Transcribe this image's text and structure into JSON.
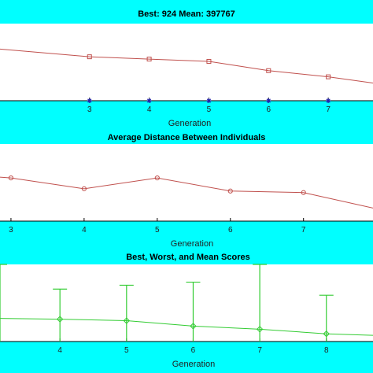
{
  "chart_data": [
    {
      "type": "line",
      "title": "Best: 924 Mean: 397767",
      "xlabel": "Generation",
      "ylabel": "",
      "xlim": [
        1.5,
        7.75
      ],
      "ylim": [
        0,
        1
      ],
      "xticks": [
        3,
        4,
        5,
        6,
        7
      ],
      "grid": false,
      "colors": {
        "mean": "#c0504d",
        "best": "#2222aa"
      },
      "series": [
        {
          "marker": "square",
          "x": [
            1.5,
            3,
            4,
            5,
            6,
            7,
            7.75
          ],
          "y": [
            0.67,
            0.57,
            0.54,
            0.51,
            0.39,
            0.31,
            0.23
          ]
        },
        {
          "marker": "star",
          "x": [
            3,
            4,
            5,
            6,
            7
          ],
          "y": [
            0,
            0,
            0,
            0,
            0
          ]
        }
      ]
    },
    {
      "type": "line",
      "title": "Average Distance Between Individuals",
      "xlabel": "Generation",
      "ylabel": "",
      "xlim": [
        2.85,
        7.95
      ],
      "ylim": [
        0,
        1
      ],
      "xticks": [
        3,
        4,
        5,
        6,
        7
      ],
      "grid": false,
      "colors": {
        "line": "#c0504d"
      },
      "series": [
        {
          "marker": "circle",
          "x": [
            2.85,
            3,
            4,
            5,
            6,
            7,
            7.95
          ],
          "y": [
            0.57,
            0.56,
            0.42,
            0.56,
            0.39,
            0.37,
            0.17
          ]
        }
      ]
    },
    {
      "type": "line",
      "title": "Best, Worst, and Mean Scores",
      "xlabel": "Generation",
      "ylabel": "",
      "xlim": [
        3.1,
        8.7
      ],
      "ylim": [
        0,
        1
      ],
      "xticks": [
        4,
        5,
        6,
        7,
        8
      ],
      "grid": false,
      "colors": {
        "line": "#33cc33"
      },
      "series": [
        {
          "marker": "diamond",
          "x": [
            3.1,
            4,
            5,
            6,
            7,
            8,
            8.7
          ],
          "y": [
            0.3,
            0.29,
            0.27,
            0.2,
            0.16,
            0.1,
            0.08
          ]
        }
      ],
      "errorbars": [
        {
          "x": 3.1,
          "low": 0,
          "high": 1.0
        },
        {
          "x": 4,
          "low": 0,
          "high": 0.68
        },
        {
          "x": 5,
          "low": 0,
          "high": 0.73
        },
        {
          "x": 6,
          "low": 0,
          "high": 0.77
        },
        {
          "x": 7,
          "low": 0,
          "high": 1.0
        },
        {
          "x": 8,
          "low": 0,
          "high": 0.6
        }
      ]
    }
  ]
}
